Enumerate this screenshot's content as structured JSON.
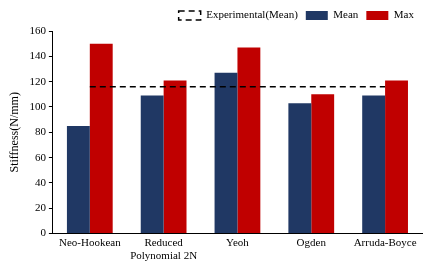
{
  "chart_data": {
    "type": "bar",
    "y_label": "Stiffness(N/mm)",
    "categories": [
      "Neo-Hookean",
      "Reduced\nPolynomial 2N",
      "Yeoh",
      "Ogden",
      "Arruda-Boyce"
    ],
    "series": [
      {
        "name": "Experimental(Mean)",
        "type": "line",
        "line_style": "dashed",
        "color": "#000000",
        "values": [
          116,
          116,
          116,
          116,
          116
        ]
      },
      {
        "name": "Mean",
        "type": "bar",
        "color": "#203864",
        "values": [
          85,
          109,
          127,
          103,
          109
        ]
      },
      {
        "name": "Max",
        "type": "bar",
        "color": "#c00000",
        "values": [
          150,
          121,
          147,
          110,
          121
        ]
      }
    ],
    "ylim": [
      0,
      160
    ],
    "yticks": [
      0,
      20,
      40,
      60,
      80,
      100,
      120,
      140,
      160
    ],
    "grid": false,
    "legend": "top right"
  }
}
